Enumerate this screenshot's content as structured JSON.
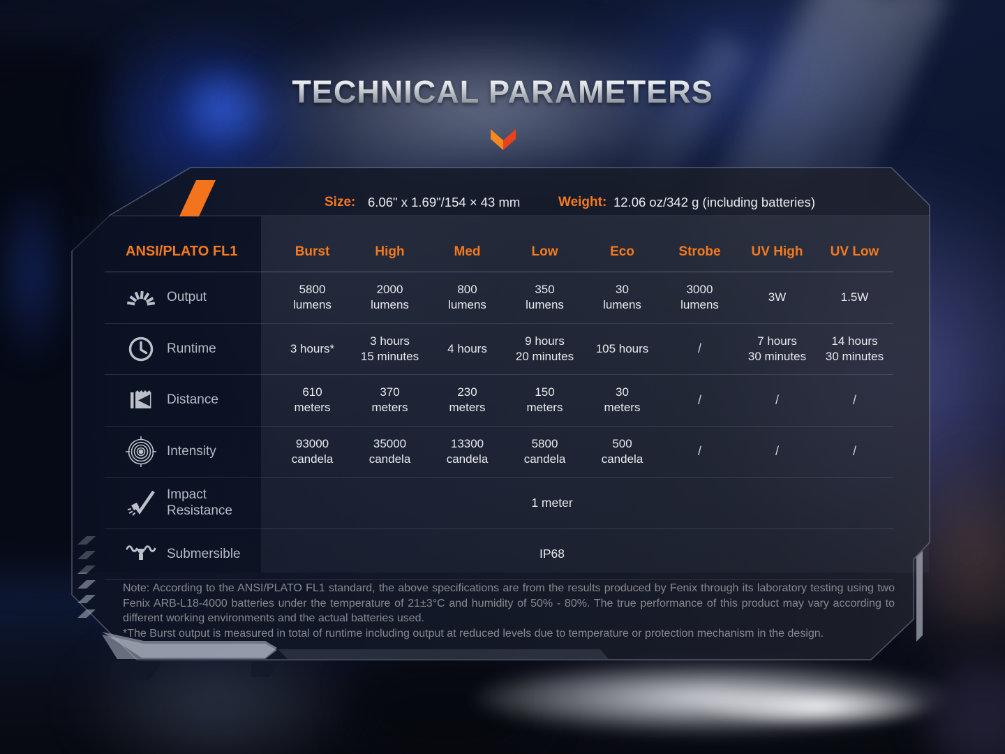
{
  "title": "TECHNICAL PARAMETERS",
  "specs": {
    "size_label": "Size:",
    "size_value": "6.06\" x 1.69\"/154 × 43 mm",
    "weight_label": "Weight:",
    "weight_value": "12.06 oz/342 g (including batteries)"
  },
  "table": {
    "corner_header": "ANSI/PLATO FL1",
    "columns": [
      "Burst",
      "High",
      "Med",
      "Low",
      "Eco",
      "Strobe",
      "UV High",
      "UV Low"
    ],
    "rows": [
      {
        "label": "Output",
        "icon": "output-beam-icon",
        "values": [
          "5800\nlumens",
          "2000\nlumens",
          "800\nlumens",
          "350\nlumens",
          "30\nlumens",
          "3000\nlumens",
          "3W",
          "1.5W"
        ]
      },
      {
        "label": "Runtime",
        "icon": "runtime-clock-icon",
        "values": [
          "3 hours*",
          "3 hours\n15 minutes",
          "4 hours",
          "9 hours\n20 minutes",
          "105 hours",
          "/",
          "7 hours\n30 minutes",
          "14 hours\n30 minutes"
        ]
      },
      {
        "label": "Distance",
        "icon": "distance-beam-icon",
        "values": [
          "610\nmeters",
          "370\nmeters",
          "230\nmeters",
          "150\nmeters",
          "30\nmeters",
          "/",
          "/",
          "/"
        ]
      },
      {
        "label": "Intensity",
        "icon": "intensity-target-icon",
        "values": [
          "93000\ncandela",
          "35000\ncandela",
          "13300\ncandela",
          "5800\ncandela",
          "500\ncandela",
          "/",
          "/",
          "/"
        ]
      },
      {
        "label": "Impact\nResistance",
        "icon": "impact-resistance-icon",
        "span_value": "1 meter"
      },
      {
        "label": "Submersible",
        "icon": "submersible-icon",
        "span_value": "IP68"
      }
    ]
  },
  "note": {
    "line1": "Note: According to the ANSI/PLATO FL1 standard, the above specifications are from the results produced by Fenix through its laboratory testing using two Fenix ARB-L18-4000 batteries under the temperature of 21±3°C and humidity of 50% - 80%. The true performance of this product may vary according to different working environments and the actual batteries used.",
    "line2": "*The Burst output is measured in total of runtime including output at reduced levels due to temperature or protection mechanism in the design."
  },
  "colors": {
    "accent_orange": "#f5791d",
    "chevron_left": "#f6891e",
    "chevron_right": "#e8411b",
    "panel_fill": "#10162220",
    "cell_text": "#e8eaed",
    "label_text": "#b5bac3",
    "note_text": "#87898e"
  }
}
